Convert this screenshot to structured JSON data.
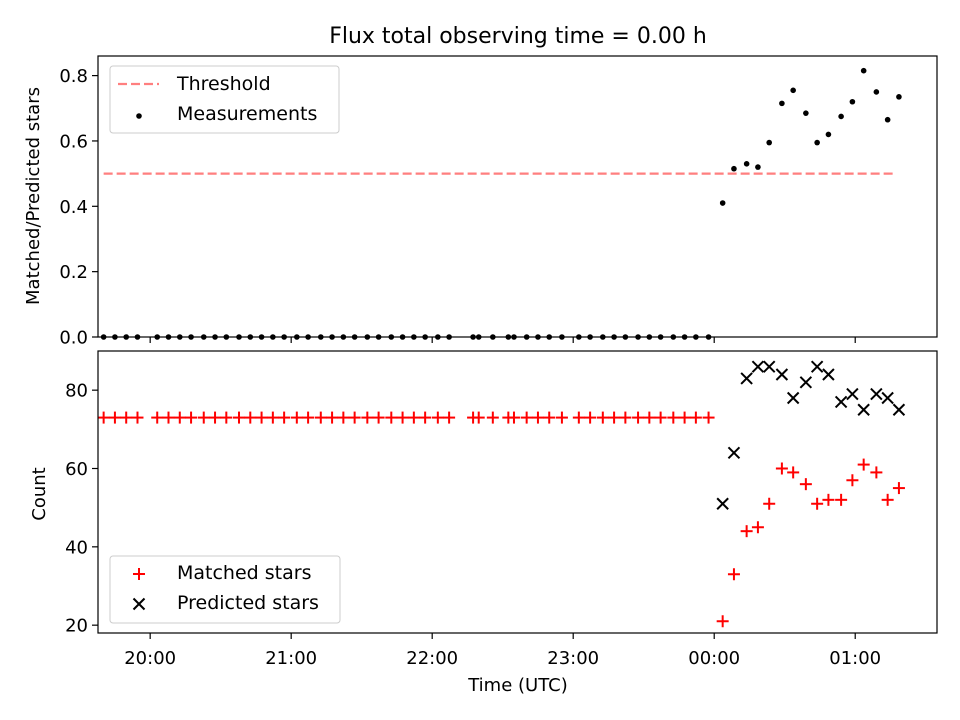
{
  "figure": {
    "title": "Flux total observing time = 0.00 h"
  },
  "colors": {
    "threshold": "#ff7f7f",
    "measurements": "#000000",
    "matched": "#ff0000",
    "predicted": "#000000"
  },
  "chart_data": [
    {
      "type": "scatter",
      "panel": "top",
      "title": "Flux total observing time = 0.00 h",
      "xlabel": "",
      "ylabel": "Matched/Predicted stars",
      "x_unit": "hours since 19:00 UTC",
      "xlim": [
        19.63,
        25.58
      ],
      "ylim": [
        0.0,
        0.86
      ],
      "yticks": [
        0.0,
        0.2,
        0.4,
        0.6,
        0.8
      ],
      "ytick_labels": [
        "0.0",
        "0.2",
        "0.4",
        "0.6",
        "0.8"
      ],
      "xticks": [
        20,
        21,
        22,
        23,
        24,
        25
      ],
      "xtick_labels": [
        "",
        "",
        "",
        "",
        "",
        ""
      ],
      "legend": {
        "location": "upper left",
        "entries": [
          "Threshold",
          "Measurements"
        ]
      },
      "series": [
        {
          "name": "Threshold",
          "kind": "dashed-line",
          "x": [
            19.67,
            25.28
          ],
          "y": [
            0.5,
            0.5
          ]
        },
        {
          "name": "Measurements",
          "kind": "dots",
          "x": [
            19.67,
            19.75,
            19.83,
            19.91,
            20.05,
            20.13,
            20.21,
            20.29,
            20.38,
            20.46,
            20.54,
            20.63,
            20.71,
            20.79,
            20.87,
            20.95,
            21.04,
            21.12,
            21.21,
            21.29,
            21.37,
            21.45,
            21.54,
            21.62,
            21.71,
            21.79,
            21.87,
            21.95,
            22.04,
            22.12,
            22.29,
            22.33,
            22.43,
            22.54,
            22.58,
            22.67,
            22.75,
            22.83,
            22.92,
            23.04,
            23.12,
            23.21,
            23.29,
            23.37,
            23.46,
            23.54,
            23.62,
            23.71,
            23.79,
            23.87,
            23.96,
            24.06,
            24.14,
            24.23,
            24.31,
            24.39,
            24.48,
            24.56,
            24.65,
            24.73,
            24.81,
            24.9,
            24.98,
            25.06,
            25.15,
            25.23,
            25.31
          ],
          "y": [
            0,
            0,
            0,
            0,
            0,
            0,
            0,
            0,
            0,
            0,
            0,
            0,
            0,
            0,
            0,
            0,
            0,
            0,
            0,
            0,
            0,
            0,
            0,
            0,
            0,
            0,
            0,
            0,
            0,
            0,
            0,
            0,
            0,
            0,
            0,
            0,
            0,
            0,
            0,
            0,
            0,
            0,
            0,
            0,
            0,
            0,
            0,
            0,
            0,
            0,
            0,
            0.41,
            0.515,
            0.53,
            0.52,
            0.595,
            0.715,
            0.755,
            0.685,
            0.595,
            0.62,
            0.675,
            0.72,
            0.815,
            0.75,
            0.665,
            0.735
          ]
        }
      ]
    },
    {
      "type": "scatter",
      "panel": "bottom",
      "xlabel": "Time (UTC)",
      "ylabel": "Count",
      "x_unit": "hours since 19:00 UTC",
      "xlim": [
        19.63,
        25.58
      ],
      "ylim": [
        18,
        90
      ],
      "yticks": [
        20,
        40,
        60,
        80
      ],
      "ytick_labels": [
        "20",
        "40",
        "60",
        "80"
      ],
      "xticks": [
        20,
        21,
        22,
        23,
        24,
        25
      ],
      "xtick_labels": [
        "20:00",
        "21:00",
        "22:00",
        "23:00",
        "00:00",
        "01:00"
      ],
      "legend": {
        "location": "lower left",
        "entries": [
          "Matched stars",
          "Predicted stars"
        ]
      },
      "series": [
        {
          "name": "Matched stars",
          "kind": "plus",
          "x": [
            19.67,
            19.75,
            19.83,
            19.91,
            20.05,
            20.13,
            20.21,
            20.29,
            20.38,
            20.46,
            20.54,
            20.63,
            20.71,
            20.79,
            20.87,
            20.95,
            21.04,
            21.12,
            21.21,
            21.29,
            21.37,
            21.45,
            21.54,
            21.62,
            21.71,
            21.79,
            21.87,
            21.95,
            22.04,
            22.12,
            22.29,
            22.33,
            22.43,
            22.54,
            22.58,
            22.67,
            22.75,
            22.83,
            22.92,
            23.04,
            23.12,
            23.21,
            23.29,
            23.37,
            23.46,
            23.54,
            23.62,
            23.71,
            23.79,
            23.87,
            23.96,
            24.06,
            24.14,
            24.23,
            24.31,
            24.39,
            24.48,
            24.56,
            24.65,
            24.73,
            24.81,
            24.9,
            24.98,
            25.06,
            25.15,
            25.23,
            25.31
          ],
          "y": [
            73,
            73,
            73,
            73,
            73,
            73,
            73,
            73,
            73,
            73,
            73,
            73,
            73,
            73,
            73,
            73,
            73,
            73,
            73,
            73,
            73,
            73,
            73,
            73,
            73,
            73,
            73,
            73,
            73,
            73,
            73,
            73,
            73,
            73,
            73,
            73,
            73,
            73,
            73,
            73,
            73,
            73,
            73,
            73,
            73,
            73,
            73,
            73,
            73,
            73,
            73,
            21,
            33,
            44,
            45,
            51,
            60,
            59,
            56,
            51,
            52,
            52,
            57,
            61,
            59,
            52,
            55
          ]
        },
        {
          "name": "Predicted stars",
          "kind": "x",
          "x": [
            24.06,
            24.14,
            24.23,
            24.31,
            24.39,
            24.48,
            24.56,
            24.65,
            24.73,
            24.81,
            24.9,
            24.98,
            25.06,
            25.15,
            25.23,
            25.31
          ],
          "y": [
            51,
            64,
            83,
            86,
            86,
            84,
            78,
            82,
            86,
            84,
            77,
            79,
            75,
            79,
            78,
            75
          ]
        }
      ]
    }
  ]
}
